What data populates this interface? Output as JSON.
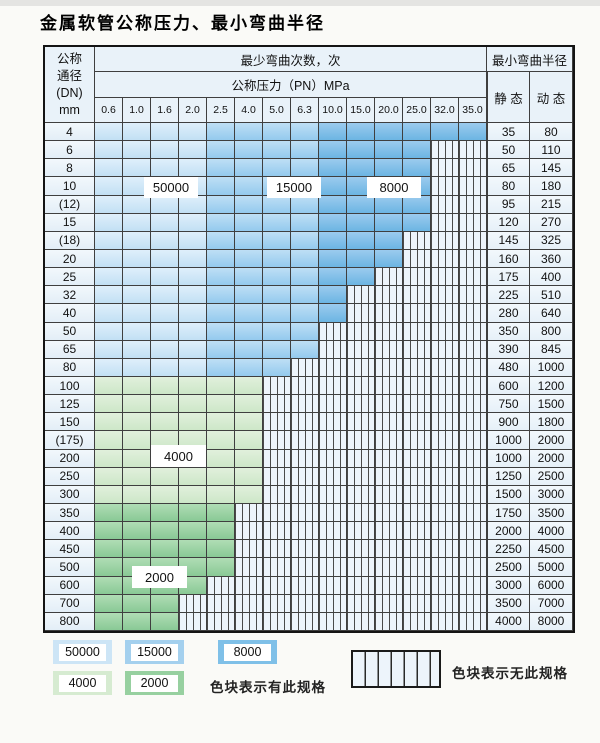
{
  "title": "金属软管公称压力、最小弯曲半径",
  "table": {
    "dn_header_lines": [
      "公称",
      "通径",
      "(DN)",
      "mm"
    ],
    "bend_cycles_header": "最少弯曲次数，次",
    "pressure_header": "公称压力（PN）MPa",
    "pressure_columns": [
      "0.6",
      "1.0",
      "1.6",
      "2.0",
      "2.5",
      "4.0",
      "5.0",
      "6.3",
      "10.0",
      "15.0",
      "20.0",
      "25.0",
      "32.0",
      "35.0"
    ],
    "radius_header": "最小弯曲半径",
    "static_header": "静 态",
    "dynamic_header": "动 态",
    "cycle_bands": {
      "blue_by_pressure_column": {
        "50000": [
          "0.6",
          "1.0",
          "1.6",
          "2.0"
        ],
        "15000": [
          "2.5",
          "4.0",
          "5.0",
          "6.3"
        ],
        "8000": [
          "10.0",
          "15.0",
          "20.0",
          "25.0",
          "32.0",
          "35.0"
        ]
      },
      "green_by_row": {
        "4000": "DN 100-300",
        "2000": "DN 350-800"
      }
    },
    "rows": [
      {
        "dn": "4",
        "colored": 14,
        "fill": "blue",
        "static": "35",
        "dynamic": "80"
      },
      {
        "dn": "6",
        "colored": 12,
        "fill": "blue",
        "static": "50",
        "dynamic": "110"
      },
      {
        "dn": "8",
        "colored": 12,
        "fill": "blue",
        "static": "65",
        "dynamic": "145"
      },
      {
        "dn": "10",
        "colored": 12,
        "fill": "blue",
        "static": "80",
        "dynamic": "180"
      },
      {
        "dn": "(12)",
        "colored": 12,
        "fill": "blue",
        "static": "95",
        "dynamic": "215"
      },
      {
        "dn": "15",
        "colored": 12,
        "fill": "blue",
        "static": "120",
        "dynamic": "270"
      },
      {
        "dn": "(18)",
        "colored": 11,
        "fill": "blue",
        "static": "145",
        "dynamic": "325"
      },
      {
        "dn": "20",
        "colored": 11,
        "fill": "blue",
        "static": "160",
        "dynamic": "360"
      },
      {
        "dn": "25",
        "colored": 10,
        "fill": "blue",
        "static": "175",
        "dynamic": "400"
      },
      {
        "dn": "32",
        "colored": 9,
        "fill": "blue",
        "static": "225",
        "dynamic": "510"
      },
      {
        "dn": "40",
        "colored": 9,
        "fill": "blue",
        "static": "280",
        "dynamic": "640"
      },
      {
        "dn": "50",
        "colored": 8,
        "fill": "blue",
        "static": "350",
        "dynamic": "800"
      },
      {
        "dn": "65",
        "colored": 8,
        "fill": "blue",
        "static": "390",
        "dynamic": "845"
      },
      {
        "dn": "80",
        "colored": 7,
        "fill": "blue",
        "static": "480",
        "dynamic": "1000"
      },
      {
        "dn": "100",
        "colored": 6,
        "fill": "green4000",
        "static": "600",
        "dynamic": "1200"
      },
      {
        "dn": "125",
        "colored": 6,
        "fill": "green4000",
        "static": "750",
        "dynamic": "1500"
      },
      {
        "dn": "150",
        "colored": 6,
        "fill": "green4000",
        "static": "900",
        "dynamic": "1800"
      },
      {
        "dn": "(175)",
        "colored": 6,
        "fill": "green4000",
        "static": "1000",
        "dynamic": "2000"
      },
      {
        "dn": "200",
        "colored": 6,
        "fill": "green4000",
        "static": "1000",
        "dynamic": "2000"
      },
      {
        "dn": "250",
        "colored": 6,
        "fill": "green4000",
        "static": "1250",
        "dynamic": "2500"
      },
      {
        "dn": "300",
        "colored": 6,
        "fill": "green4000",
        "static": "1500",
        "dynamic": "3000"
      },
      {
        "dn": "350",
        "colored": 5,
        "fill": "green2000",
        "static": "1750",
        "dynamic": "3500"
      },
      {
        "dn": "400",
        "colored": 5,
        "fill": "green2000",
        "static": "2000",
        "dynamic": "4000"
      },
      {
        "dn": "450",
        "colored": 5,
        "fill": "green2000",
        "static": "2250",
        "dynamic": "4500"
      },
      {
        "dn": "500",
        "colored": 5,
        "fill": "green2000",
        "static": "2500",
        "dynamic": "5000"
      },
      {
        "dn": "600",
        "colored": 4,
        "fill": "green2000",
        "static": "3000",
        "dynamic": "6000"
      },
      {
        "dn": "700",
        "colored": 3,
        "fill": "green2000",
        "static": "3500",
        "dynamic": "7000"
      },
      {
        "dn": "800",
        "colored": 3,
        "fill": "green2000",
        "static": "4000",
        "dynamic": "8000"
      }
    ]
  },
  "overlay_labels": [
    {
      "text": "50000"
    },
    {
      "text": "15000"
    },
    {
      "text": "8000"
    },
    {
      "text": "4000"
    },
    {
      "text": "2000"
    }
  ],
  "legend": {
    "swatches": [
      {
        "label": "50000",
        "color": "#cde5f6"
      },
      {
        "label": "15000",
        "color": "#a4d0ee"
      },
      {
        "label": "8000",
        "color": "#7fc0e8"
      },
      {
        "label": "4000",
        "color": "#d6ebd1"
      },
      {
        "label": "2000",
        "color": "#97d0a0"
      }
    ],
    "has_spec_text": "色块表示有此规格",
    "no_spec_text": "色块表示无此规格"
  },
  "colors": {
    "blue_light": "#cde5f6",
    "blue_medium": "#a4d0ee",
    "blue_dark": "#7fc0e8",
    "green_light": "#d6ebd1",
    "green_dark": "#97d0a0",
    "hatch_bg": "#edf4fb",
    "grid_line": "#3f3f3f",
    "header_bg": "#e9f2f9"
  }
}
